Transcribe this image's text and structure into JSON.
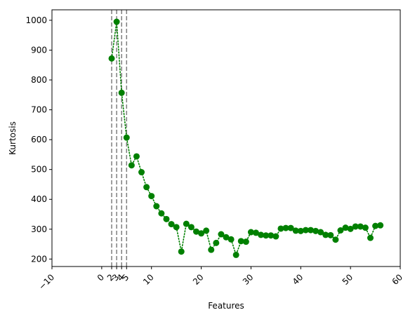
{
  "chart_data": {
    "type": "scatter",
    "title": "",
    "xlabel": "Features",
    "ylabel": "Kurtosis",
    "xlim": [
      -10,
      60
    ],
    "ylim": [
      175,
      1035
    ],
    "xticks": [
      -10,
      0,
      2,
      3,
      4,
      5,
      10,
      20,
      30,
      40,
      50,
      60
    ],
    "xtick_labels": [
      "−10",
      "0",
      "2",
      "3",
      "4",
      "5",
      "10",
      "20",
      "30",
      "40",
      "50",
      "60"
    ],
    "xtick_rotation": 45,
    "yticks": [
      200,
      300,
      400,
      500,
      600,
      700,
      800,
      900,
      1000
    ],
    "ytick_labels": [
      "200",
      "300",
      "400",
      "500",
      "600",
      "700",
      "800",
      "900",
      "1000"
    ],
    "vlines": [
      2,
      3,
      4,
      5
    ],
    "vline_color": "#7f7f7f",
    "grid": false,
    "series": [
      {
        "color": "#008000",
        "marker": "circle",
        "linestyle": "dotted",
        "x": [
          2,
          3,
          4,
          5,
          6,
          7,
          8,
          9,
          10,
          11,
          12,
          13,
          14,
          15,
          16,
          17,
          18,
          19,
          20,
          21,
          22,
          23,
          24,
          25,
          26,
          27,
          28,
          29,
          30,
          31,
          32,
          33,
          34,
          35,
          36,
          37,
          38,
          39,
          40,
          41,
          42,
          43,
          44,
          45,
          46,
          47,
          48,
          49,
          50,
          51,
          52,
          53,
          54,
          55,
          56
        ],
        "y": [
          872,
          995,
          757,
          607,
          514,
          544,
          491,
          441,
          411,
          377,
          353,
          334,
          317,
          307,
          225,
          318,
          307,
          292,
          286,
          295,
          231,
          254,
          283,
          273,
          266,
          214,
          260,
          258,
          290,
          288,
          281,
          279,
          279,
          276,
          302,
          304,
          304,
          295,
          294,
          297,
          297,
          294,
          290,
          281,
          280,
          265,
          296,
          305,
          301,
          309,
          309,
          305,
          271,
          311,
          313
        ]
      }
    ]
  }
}
